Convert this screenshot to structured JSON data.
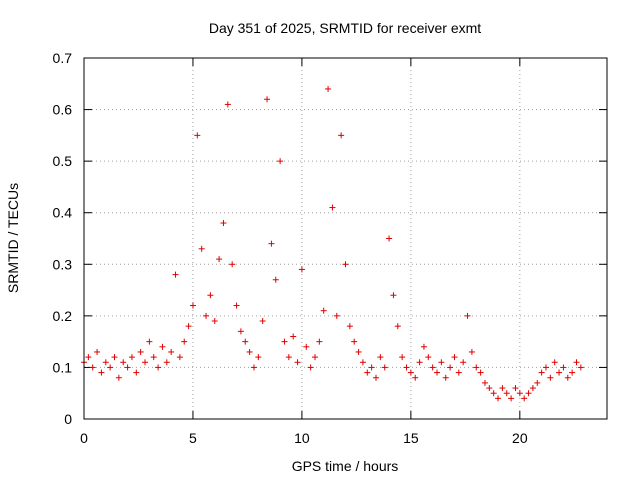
{
  "chart_data": {
    "type": "scatter",
    "title": "Day 351 of 2025, SRMTID for receiver exmt",
    "xlabel": "GPS time / hours",
    "ylabel": "SRMTID / TECUs",
    "xlim": [
      0,
      24
    ],
    "ylim": [
      0,
      0.7
    ],
    "x_ticks": [
      0,
      5,
      10,
      15,
      20
    ],
    "x_tick_labels": [
      "0",
      "5",
      "10",
      "15",
      "20"
    ],
    "y_ticks": [
      0,
      0.1,
      0.2,
      0.3,
      0.4,
      0.5,
      0.6,
      0.7
    ],
    "y_tick_labels": [
      "0",
      "0.1",
      "0.2",
      "0.3",
      "0.4",
      "0.5",
      "0.6",
      "0.7"
    ],
    "grid": true,
    "marker": "+",
    "series": [
      {
        "name": "SRMTID",
        "color": "#e00000",
        "x": [
          0.0,
          0.2,
          0.4,
          0.6,
          0.8,
          1.0,
          1.2,
          1.4,
          1.6,
          1.8,
          2.0,
          2.2,
          2.4,
          2.6,
          2.8,
          3.0,
          3.2,
          3.4,
          3.6,
          3.8,
          4.0,
          4.2,
          4.4,
          4.6,
          4.8,
          5.0,
          5.2,
          5.4,
          5.6,
          5.8,
          6.0,
          6.2,
          6.4,
          6.6,
          6.8,
          7.0,
          7.2,
          7.4,
          7.6,
          7.8,
          8.0,
          8.2,
          8.4,
          8.6,
          8.8,
          9.0,
          9.2,
          9.4,
          9.6,
          9.8,
          10.0,
          10.2,
          10.4,
          10.6,
          10.8,
          11.0,
          11.2,
          11.4,
          11.6,
          11.8,
          12.0,
          12.2,
          12.4,
          12.6,
          12.8,
          13.0,
          13.2,
          13.4,
          13.6,
          13.8,
          14.0,
          14.2,
          14.4,
          14.6,
          14.8,
          15.0,
          15.2,
          15.4,
          15.6,
          15.8,
          16.0,
          16.2,
          16.4,
          16.6,
          16.8,
          17.0,
          17.2,
          17.4,
          17.6,
          17.8,
          18.0,
          18.2,
          18.4,
          18.6,
          18.8,
          19.0,
          19.2,
          19.4,
          19.6,
          19.8,
          20.0,
          20.2,
          20.4,
          20.6,
          20.8,
          21.0,
          21.2,
          21.4,
          21.6,
          21.8,
          22.0,
          22.2,
          22.4,
          22.6,
          22.8
        ],
        "y": [
          0.11,
          0.12,
          0.1,
          0.13,
          0.09,
          0.11,
          0.1,
          0.12,
          0.08,
          0.11,
          0.1,
          0.12,
          0.09,
          0.13,
          0.11,
          0.15,
          0.12,
          0.1,
          0.14,
          0.11,
          0.13,
          0.28,
          0.12,
          0.15,
          0.18,
          0.22,
          0.55,
          0.33,
          0.2,
          0.24,
          0.19,
          0.31,
          0.38,
          0.61,
          0.3,
          0.22,
          0.17,
          0.15,
          0.13,
          0.1,
          0.12,
          0.19,
          0.62,
          0.34,
          0.27,
          0.5,
          0.15,
          0.12,
          0.16,
          0.11,
          0.29,
          0.14,
          0.1,
          0.12,
          0.15,
          0.21,
          0.64,
          0.41,
          0.2,
          0.55,
          0.3,
          0.18,
          0.15,
          0.13,
          0.11,
          0.09,
          0.1,
          0.08,
          0.12,
          0.1,
          0.35,
          0.24,
          0.18,
          0.12,
          0.1,
          0.09,
          0.08,
          0.11,
          0.14,
          0.12,
          0.1,
          0.09,
          0.11,
          0.08,
          0.1,
          0.12,
          0.09,
          0.11,
          0.2,
          0.13,
          0.1,
          0.09,
          0.07,
          0.06,
          0.05,
          0.04,
          0.06,
          0.05,
          0.04,
          0.06,
          0.05,
          0.04,
          0.05,
          0.06,
          0.07,
          0.09,
          0.1,
          0.08,
          0.11,
          0.09,
          0.1,
          0.08,
          0.09,
          0.11,
          0.1
        ]
      }
    ]
  }
}
